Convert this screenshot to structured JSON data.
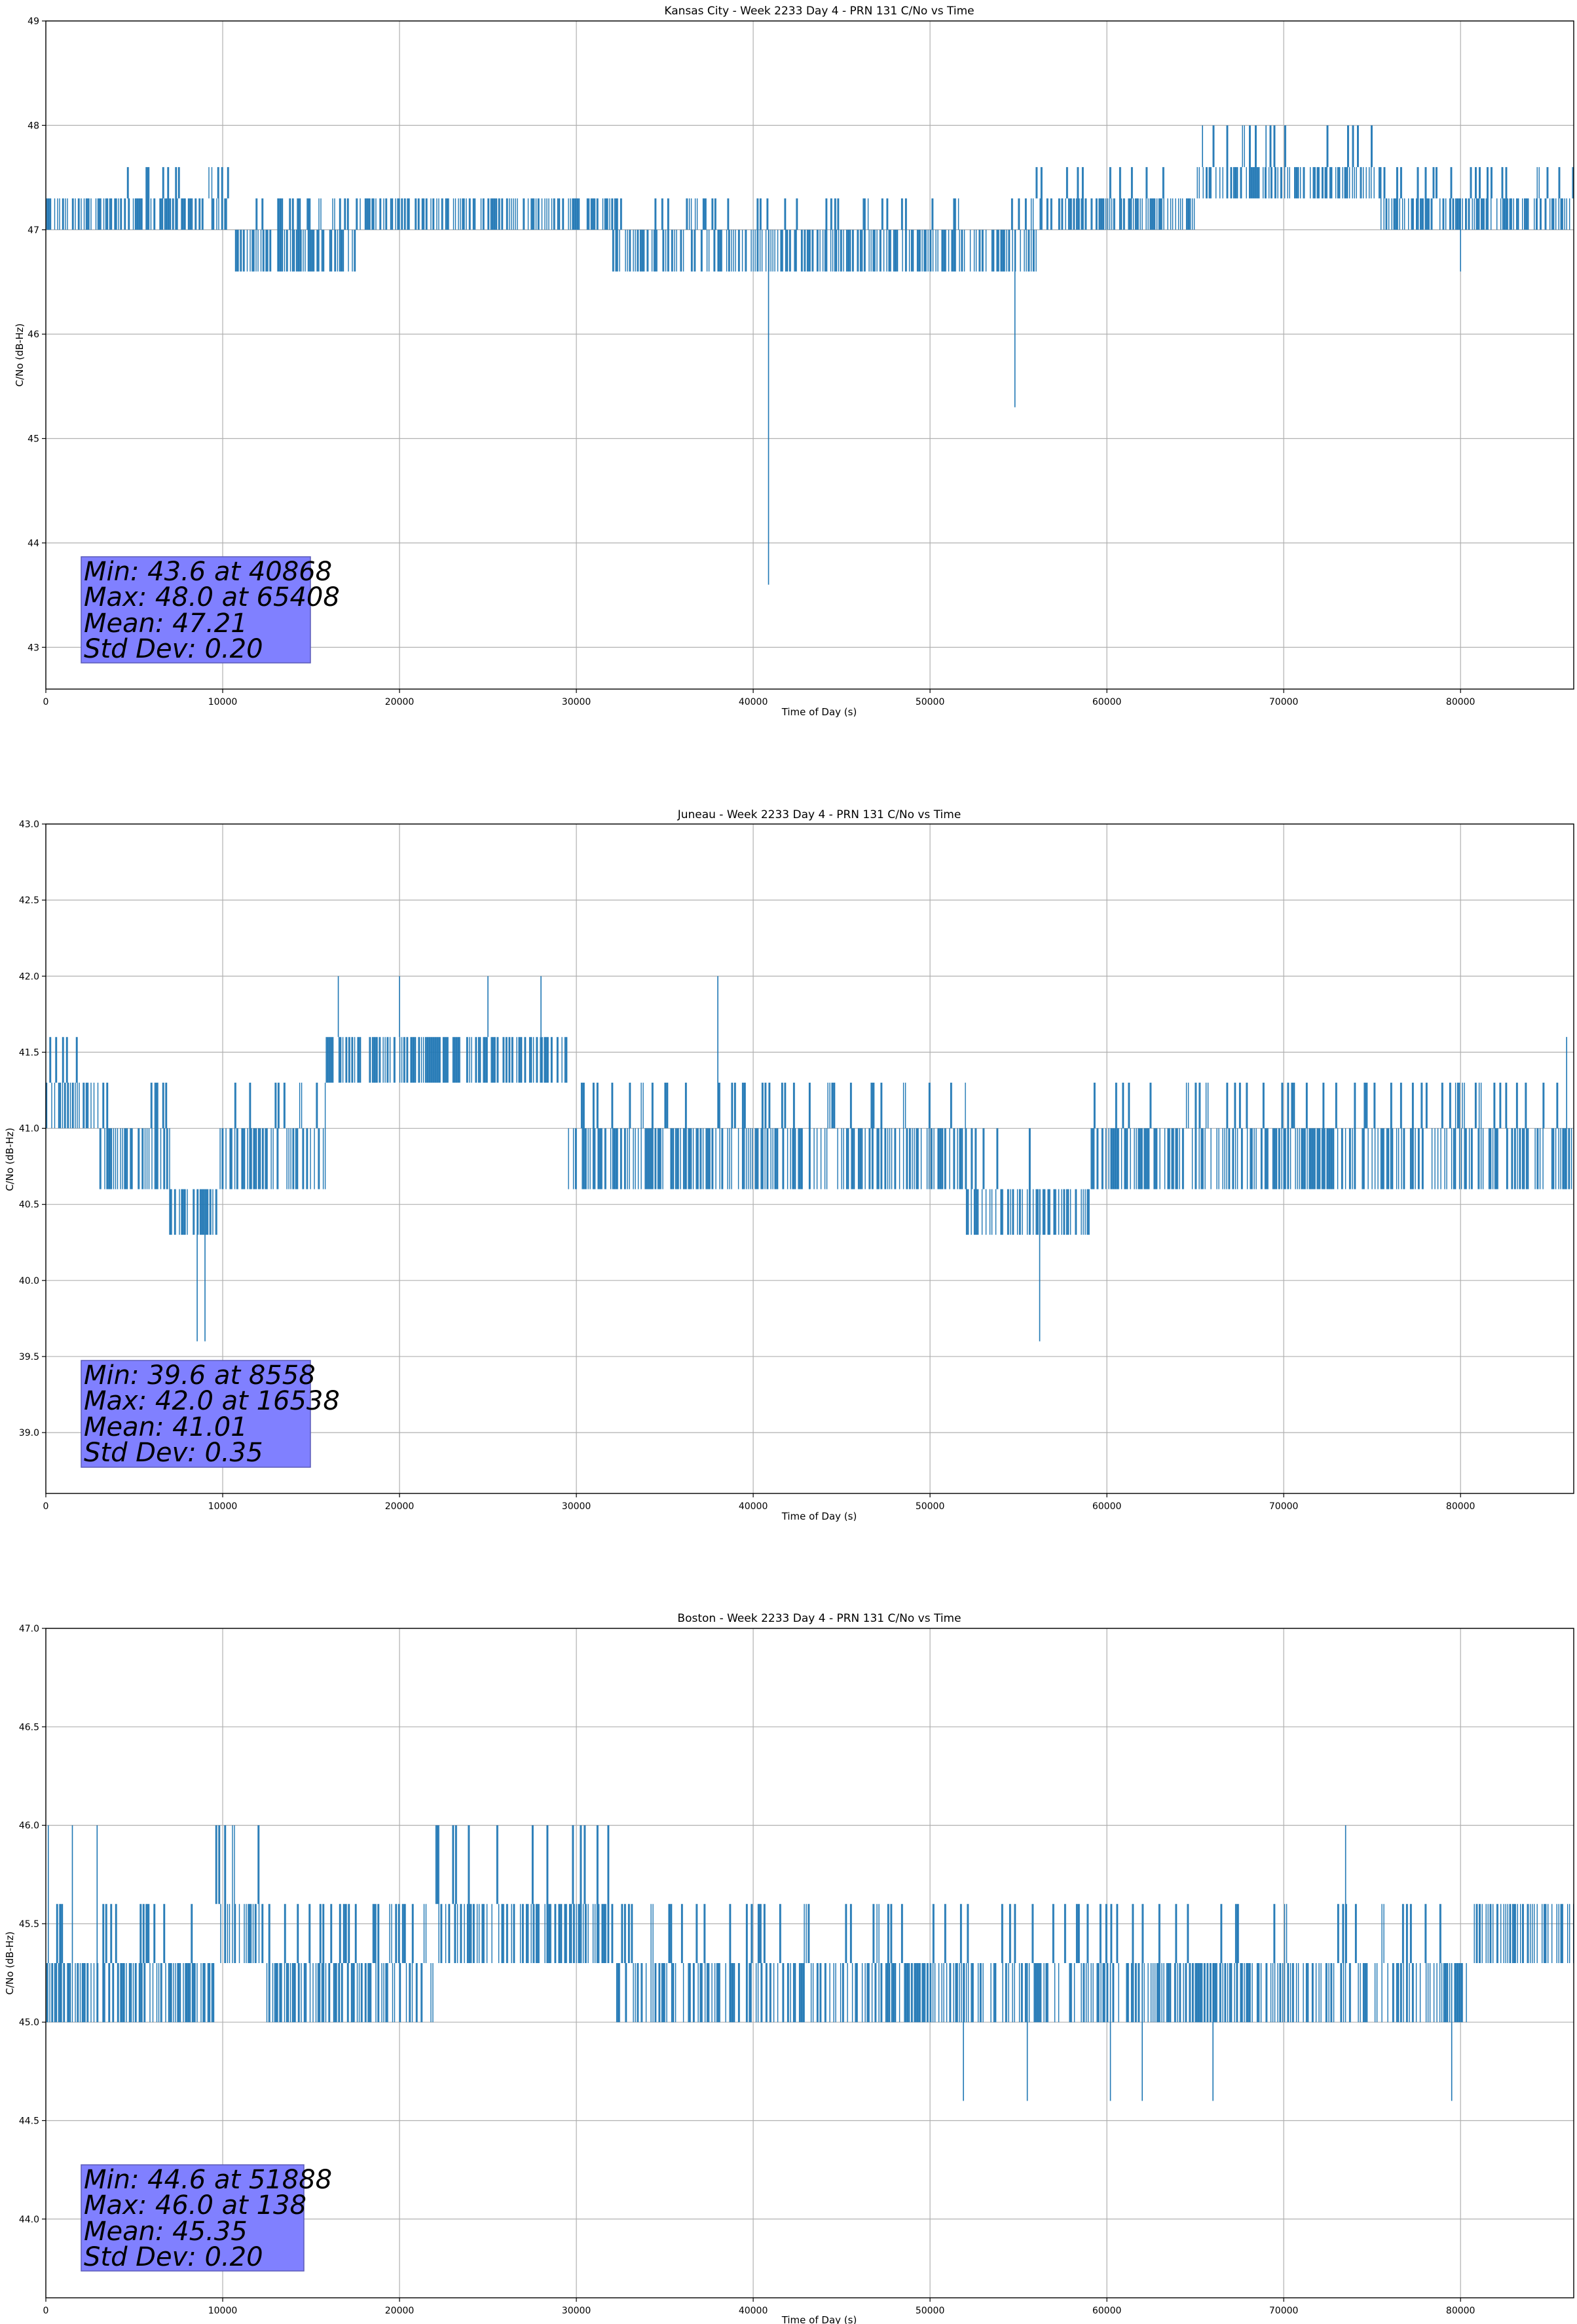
{
  "chart_data": [
    {
      "type": "line",
      "title": "Kansas City - Week 2233 Day 4 - PRN 131 C/No vs Time",
      "xlabel": "Time of Day (s)",
      "ylabel": "C/No (dB-Hz)",
      "xlim": [
        0,
        86400
      ],
      "ylim": [
        42.6,
        49.0
      ],
      "xticks": [
        0,
        10000,
        20000,
        30000,
        40000,
        50000,
        60000,
        70000,
        80000
      ],
      "yticks": [
        43,
        44,
        45,
        46,
        47,
        48,
        49
      ],
      "ytick_decimals": 0,
      "grid": true,
      "color": "#1f77b4",
      "series": [
        {
          "values_described_as_bands": true,
          "segments": [
            {
              "x": [
                0,
                4500
              ],
              "levels": [
                47.0,
                47.3
              ]
            },
            {
              "x": [
                4500,
                10500
              ],
              "levels": [
                47.0,
                47.3,
                47.6
              ]
            },
            {
              "x": [
                10500,
                17500
              ],
              "levels": [
                46.6,
                47.0,
                47.3
              ]
            },
            {
              "x": [
                17500,
                32000
              ],
              "levels": [
                47.0,
                47.3
              ]
            },
            {
              "x": [
                32000,
                56000
              ],
              "levels": [
                46.6,
                47.0,
                47.3
              ]
            },
            {
              "x": [
                56000,
                65000
              ],
              "levels": [
                47.0,
                47.3,
                47.6
              ]
            },
            {
              "x": [
                65000,
                75500
              ],
              "levels": [
                47.3,
                47.6,
                48.0
              ]
            },
            {
              "x": [
                75500,
                86400
              ],
              "levels": [
                47.0,
                47.3,
                47.6
              ]
            }
          ],
          "spikes": [
            {
              "x": 40868,
              "y": 43.6
            },
            {
              "x": 54800,
              "y": 45.3
            },
            {
              "x": 65408,
              "y": 48.0
            },
            {
              "x": 69000,
              "y": 48.0
            },
            {
              "x": 80000,
              "y": 46.6
            }
          ]
        }
      ],
      "stats": [
        "Min: 43.6 at 40868",
        "Max: 48.0 at 65408",
        "Mean: 47.21",
        "Std Dev: 0.20"
      ]
    },
    {
      "type": "line",
      "title": "Juneau - Week 2233 Day 4 - PRN 131 C/No vs Time",
      "xlabel": "Time of Day (s)",
      "ylabel": "C/No (dB-Hz)",
      "xlim": [
        0,
        86400
      ],
      "ylim": [
        38.6,
        43.0
      ],
      "xticks": [
        0,
        10000,
        20000,
        30000,
        40000,
        50000,
        60000,
        70000,
        80000
      ],
      "yticks": [
        39.0,
        39.5,
        40.0,
        40.5,
        41.0,
        41.5,
        42.0,
        42.5,
        43.0
      ],
      "ytick_decimals": 1,
      "grid": true,
      "color": "#1f77b4",
      "series": [
        {
          "values_described_as_bands": true,
          "segments": [
            {
              "x": [
                0,
                3000
              ],
              "levels": [
                41.0,
                41.3,
                41.6
              ]
            },
            {
              "x": [
                3000,
                7000
              ],
              "levels": [
                40.6,
                41.0,
                41.3
              ]
            },
            {
              "x": [
                7000,
                9800
              ],
              "levels": [
                40.3,
                40.6
              ]
            },
            {
              "x": [
                9800,
                15800
              ],
              "levels": [
                40.6,
                41.0,
                41.3
              ]
            },
            {
              "x": [
                15800,
                29500
              ],
              "levels": [
                41.3,
                41.6
              ]
            },
            {
              "x": [
                29500,
                52000
              ],
              "levels": [
                40.6,
                41.0,
                41.3
              ]
            },
            {
              "x": [
                52000,
                56000
              ],
              "levels": [
                40.3,
                40.6,
                41.0
              ]
            },
            {
              "x": [
                56000,
                59000
              ],
              "levels": [
                40.3,
                40.6
              ]
            },
            {
              "x": [
                59000,
                86400
              ],
              "levels": [
                40.6,
                41.0,
                41.3
              ]
            }
          ],
          "spikes": [
            {
              "x": 8558,
              "y": 39.6
            },
            {
              "x": 9000,
              "y": 39.6
            },
            {
              "x": 16538,
              "y": 42.0
            },
            {
              "x": 20000,
              "y": 42.0
            },
            {
              "x": 25000,
              "y": 42.0
            },
            {
              "x": 28000,
              "y": 42.0
            },
            {
              "x": 38000,
              "y": 42.0
            },
            {
              "x": 56200,
              "y": 39.6
            },
            {
              "x": 86000,
              "y": 41.6
            }
          ]
        }
      ],
      "stats": [
        "Min: 39.6 at 8558",
        "Max: 42.0 at 16538",
        "Mean: 41.01",
        "Std Dev: 0.35"
      ]
    },
    {
      "type": "line",
      "title": "Boston - Week 2233 Day 4 - PRN 131 C/No vs Time",
      "xlabel": "Time of Day (s)",
      "ylabel": "C/No (dB-Hz)",
      "xlim": [
        0,
        86400
      ],
      "ylim": [
        43.6,
        47.0
      ],
      "xticks": [
        0,
        10000,
        20000,
        30000,
        40000,
        50000,
        60000,
        70000,
        80000
      ],
      "yticks": [
        44.0,
        44.5,
        45.0,
        45.5,
        46.0,
        46.5,
        47.0
      ],
      "ytick_decimals": 1,
      "grid": true,
      "color": "#1f77b4",
      "series": [
        {
          "values_described_as_bands": true,
          "segments": [
            {
              "x": [
                0,
                9500
              ],
              "levels": [
                45.0,
                45.3,
                45.6
              ]
            },
            {
              "x": [
                9500,
                12500
              ],
              "levels": [
                45.3,
                45.6,
                46.0
              ]
            },
            {
              "x": [
                12500,
                22000
              ],
              "levels": [
                45.0,
                45.3,
                45.6
              ]
            },
            {
              "x": [
                22000,
                32000
              ],
              "levels": [
                45.3,
                45.6,
                46.0
              ]
            },
            {
              "x": [
                32000,
                45500
              ],
              "levels": [
                45.0,
                45.3,
                45.6
              ]
            },
            {
              "x": [
                45500,
                80500
              ],
              "levels": [
                45.0,
                45.3,
                45.6
              ]
            },
            {
              "x": [
                80500,
                86400
              ],
              "levels": [
                45.3,
                45.6
              ]
            }
          ],
          "spikes": [
            {
              "x": 138,
              "y": 46.0
            },
            {
              "x": 1500,
              "y": 46.0
            },
            {
              "x": 2900,
              "y": 46.0
            },
            {
              "x": 51888,
              "y": 44.6
            },
            {
              "x": 55500,
              "y": 44.6
            },
            {
              "x": 60200,
              "y": 44.6
            },
            {
              "x": 62000,
              "y": 44.6
            },
            {
              "x": 66000,
              "y": 44.6
            },
            {
              "x": 73500,
              "y": 46.0
            },
            {
              "x": 79500,
              "y": 44.6
            }
          ]
        }
      ],
      "stats": [
        "Min: 44.6 at 51888",
        "Max: 46.0 at 138",
        "Mean: 45.35",
        "Std Dev: 0.20"
      ]
    }
  ]
}
